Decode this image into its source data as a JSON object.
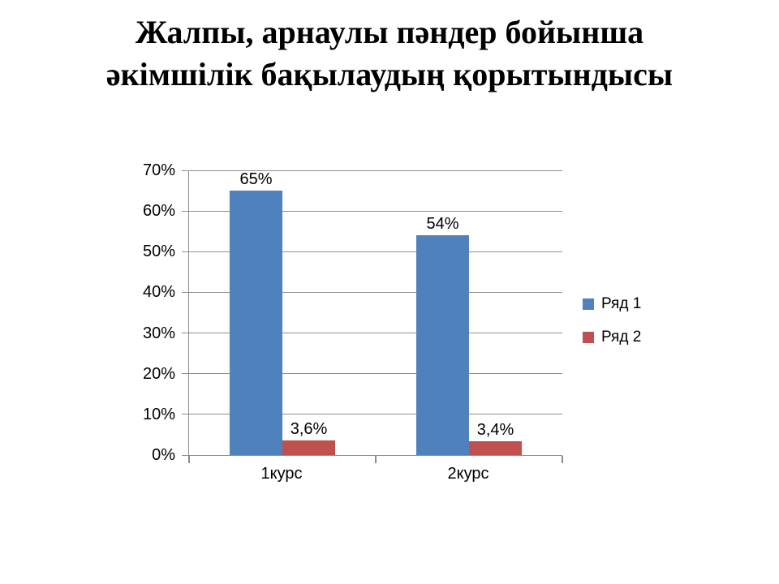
{
  "title": "Жалпы, арнаулы пәндер бойынша әкімшілік бақылаудың қорытындысы",
  "chart_data": {
    "type": "bar",
    "title": "Жалпы, арнаулы пәндер бойынша әкімшілік бақылаудың қорытындысы",
    "categories": [
      "1курс",
      "2курс"
    ],
    "series": [
      {
        "name": "Ряд 1",
        "color": "#4F81BD",
        "values": [
          65,
          54
        ],
        "labels": [
          "65%",
          "54%"
        ]
      },
      {
        "name": "Ряд 2",
        "color": "#C0504D",
        "values": [
          3.6,
          3.4
        ],
        "labels": [
          "3,6%",
          "3,4%"
        ]
      }
    ],
    "xlabel": "",
    "ylabel": "",
    "ylim": [
      0,
      70
    ],
    "ytick_step": 10,
    "ytick_labels": [
      "0%",
      "10%",
      "20%",
      "30%",
      "40%",
      "50%",
      "60%",
      "70%"
    ],
    "grid": true,
    "legend_position": "right",
    "gridline_color": "#8F8F8F",
    "axis_color": "#8C8C8C",
    "background": "#FFFFFF"
  }
}
